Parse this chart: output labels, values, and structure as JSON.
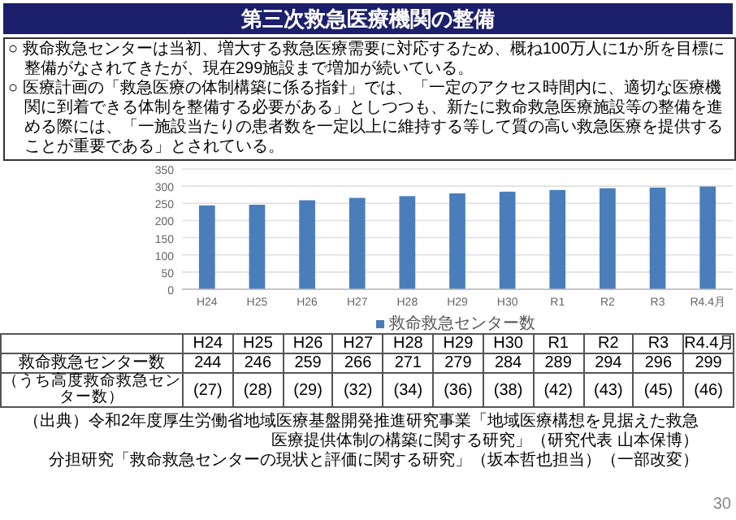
{
  "chart_data": {
    "type": "bar",
    "title": "第三次救急医療機関の整備",
    "categories": [
      "H24",
      "H25",
      "H26",
      "H27",
      "H28",
      "H29",
      "H30",
      "R1",
      "R2",
      "R3",
      "R4.4月"
    ],
    "series": [
      {
        "name": "救命救急センター数",
        "color": "#4a7ebb",
        "values": [
          244,
          246,
          259,
          266,
          271,
          279,
          284,
          289,
          294,
          296,
          299
        ]
      }
    ],
    "ylim": [
      0,
      350
    ],
    "yticks": [
      0,
      50,
      100,
      150,
      200,
      250,
      300,
      350
    ],
    "grid": "y",
    "legend": "bottom",
    "data_labels": true,
    "annotations": [
      "○ 救命救急センターは当初、増大する救急医療需要に対応するため、概ね100万人に1か所を目標に整備がなされてきたが、現在299施設まで増加が続いている。",
      "○ 医療計画の「救急医療の体制構築に係る指針」では、「一定のアクセス時間内に、適切な医療機関に到着できる体制を整備する必要がある」としつつも、新たに救命救急医療施設等の整備を進める際には、「一施設当たりの患者数を一定以上に維持する等して質の高い救急医療を提供することが重要である」とされている。",
      "救命救急センター数",
      "（うち高度救命救急センター数）",
      "(27)",
      "(28)",
      "(29)",
      "(32)",
      "(34)",
      "(36)",
      "(38)",
      "(42)",
      "(43)",
      "(45)",
      "(46)",
      "（出典）令和2年度厚生労働省地域医療基盤開発推進研究事業「地域医療構想を見据えた救急医療提供体制の構築に関する研究」（研究代表 山本保博）",
      "分担研究「救命救急センターの現状と評価に関する研究」（坂本哲也担当）（一部改変）",
      "30"
    ]
  }
}
